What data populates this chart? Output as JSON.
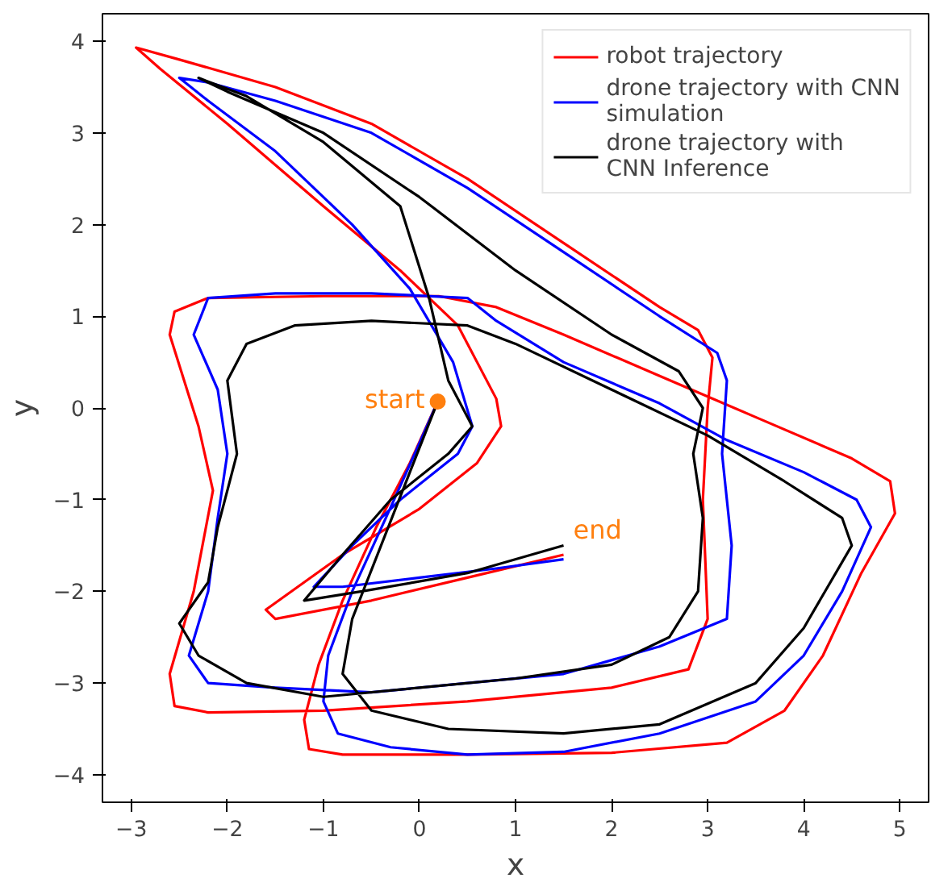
{
  "chart_data": {
    "type": "line",
    "xlabel": "x",
    "ylabel": "y",
    "xlim": [
      -3.3,
      5.3
    ],
    "ylim": [
      -4.3,
      4.3
    ],
    "xticks": [
      -3,
      -2,
      -1,
      0,
      1,
      2,
      3,
      4,
      5
    ],
    "yticks": [
      -4,
      -3,
      -2,
      -1,
      0,
      1,
      2,
      3,
      4
    ],
    "grid": false,
    "legend": "top right",
    "line_style": "solid",
    "series": [
      {
        "name": "robot trajectory",
        "color": "#ff0000",
        "x": [
          0.19,
          -0.1,
          -0.45,
          -0.8,
          -1.05,
          -1.2,
          -1.15,
          -0.8,
          0.5,
          2.0,
          3.2,
          3.8,
          4.2,
          4.6,
          4.95,
          4.9,
          4.5,
          3.5,
          2.5,
          1.5,
          0.8,
          0.2,
          -1.0,
          -2.2,
          -2.55,
          -2.6,
          -2.3,
          -2.15,
          -2.35,
          -2.6,
          -2.55,
          -2.2,
          -1.0,
          0.5,
          2.0,
          2.8,
          3.0,
          2.95,
          3.0,
          3.05,
          2.9,
          2.5,
          1.5,
          0.5,
          -0.5,
          -1.5,
          -2.5,
          -2.95,
          -2.7,
          -2.0,
          -1.0,
          -0.2,
          0.4,
          0.8,
          0.85,
          0.6,
          0.0,
          -0.8,
          -1.6,
          -1.5,
          -0.5,
          0.5,
          1.5
        ],
        "values": [
          0.07,
          -0.6,
          -1.3,
          -2.1,
          -2.8,
          -3.4,
          -3.72,
          -3.78,
          -3.78,
          -3.76,
          -3.65,
          -3.3,
          -2.7,
          -1.8,
          -1.15,
          -0.8,
          -0.55,
          -0.1,
          0.35,
          0.8,
          1.1,
          1.22,
          1.22,
          1.2,
          1.05,
          0.8,
          -0.2,
          -0.9,
          -2.0,
          -2.9,
          -3.25,
          -3.32,
          -3.3,
          -3.2,
          -3.05,
          -2.85,
          -2.3,
          -1.0,
          0.0,
          0.55,
          0.85,
          1.1,
          1.8,
          2.5,
          3.1,
          3.5,
          3.8,
          3.93,
          3.7,
          3.1,
          2.2,
          1.5,
          0.9,
          0.1,
          -0.2,
          -0.6,
          -1.1,
          -1.6,
          -2.2,
          -2.3,
          -2.1,
          -1.85,
          -1.6
        ]
      },
      {
        "name": "drone trajectory with CNN\nsimulation",
        "color": "#0000ff",
        "x": [
          0.19,
          -0.05,
          -0.35,
          -0.7,
          -0.95,
          -1.0,
          -0.85,
          -0.3,
          0.5,
          1.5,
          2.5,
          3.5,
          4.0,
          4.4,
          4.7,
          4.55,
          4.0,
          3.2,
          2.5,
          1.5,
          0.8,
          0.5,
          -0.5,
          -1.5,
          -2.2,
          -2.35,
          -2.1,
          -2.0,
          -2.1,
          -2.2,
          -2.4,
          -2.2,
          -1.5,
          -0.5,
          0.5,
          1.5,
          2.5,
          3.2,
          3.25,
          3.15,
          3.2,
          3.1,
          2.5,
          1.5,
          0.5,
          -0.5,
          -1.5,
          -2.2,
          -2.5,
          -2.2,
          -1.5,
          -0.7,
          -0.1,
          0.35,
          0.55,
          0.4,
          -0.2,
          -0.7,
          -1.1,
          -0.8,
          0.0,
          0.8,
          1.5
        ],
        "values": [
          0.07,
          -0.5,
          -1.2,
          -2.0,
          -2.7,
          -3.2,
          -3.55,
          -3.7,
          -3.78,
          -3.75,
          -3.55,
          -3.2,
          -2.7,
          -2.0,
          -1.3,
          -1.0,
          -0.7,
          -0.35,
          0.05,
          0.5,
          0.95,
          1.2,
          1.25,
          1.25,
          1.2,
          0.8,
          0.2,
          -0.5,
          -1.2,
          -2.0,
          -2.7,
          -3.0,
          -3.05,
          -3.1,
          -3.0,
          -2.9,
          -2.6,
          -2.3,
          -1.5,
          -0.5,
          0.3,
          0.6,
          1.0,
          1.7,
          2.4,
          3.0,
          3.35,
          3.55,
          3.6,
          3.35,
          2.8,
          2.0,
          1.3,
          0.5,
          -0.2,
          -0.5,
          -1.0,
          -1.5,
          -1.95,
          -1.95,
          -1.85,
          -1.75,
          -1.65
        ]
      },
      {
        "name": "drone trajectory with\nCNN Inference",
        "color": "#000000",
        "x": [
          0.19,
          -0.1,
          -0.4,
          -0.7,
          -0.8,
          -0.5,
          0.3,
          1.5,
          2.5,
          3.5,
          4.0,
          4.5,
          4.4,
          3.8,
          3.0,
          2.0,
          1.0,
          0.5,
          -0.5,
          -1.3,
          -1.8,
          -2.0,
          -1.9,
          -2.1,
          -2.2,
          -2.5,
          -2.3,
          -1.8,
          -1.0,
          0.0,
          1.0,
          2.0,
          2.6,
          2.9,
          2.95,
          2.85,
          2.95,
          2.7,
          2.0,
          1.0,
          0.0,
          -1.0,
          -2.0,
          -2.3,
          -1.8,
          -1.0,
          -0.2,
          0.1,
          0.3,
          0.55,
          0.3,
          -0.3,
          -0.8,
          -1.2,
          -0.6,
          0.5,
          1.5
        ],
        "values": [
          0.07,
          -0.7,
          -1.5,
          -2.3,
          -2.9,
          -3.3,
          -3.5,
          -3.55,
          -3.45,
          -3.0,
          -2.4,
          -1.5,
          -1.2,
          -0.8,
          -0.3,
          0.2,
          0.7,
          0.9,
          0.95,
          0.9,
          0.7,
          0.3,
          -0.5,
          -1.3,
          -1.9,
          -2.35,
          -2.7,
          -3.0,
          -3.15,
          -3.05,
          -2.95,
          -2.8,
          -2.5,
          -2.0,
          -1.2,
          -0.5,
          0.0,
          0.4,
          0.8,
          1.5,
          2.3,
          3.0,
          3.45,
          3.6,
          3.4,
          2.9,
          2.2,
          1.2,
          0.3,
          -0.2,
          -0.5,
          -1.0,
          -1.6,
          -2.1,
          -2.0,
          -1.8,
          -1.5
        ]
      },
      {
        "type": "scatter",
        "marker": "circle",
        "color": "#ff7f0e",
        "x": [
          0.19
        ],
        "values": [
          0.07
        ]
      }
    ],
    "annotations": [
      {
        "text": "start",
        "x": 0.19,
        "y": 0.07
      },
      {
        "text": "end",
        "x": 1.5,
        "y": -1.6
      }
    ]
  }
}
